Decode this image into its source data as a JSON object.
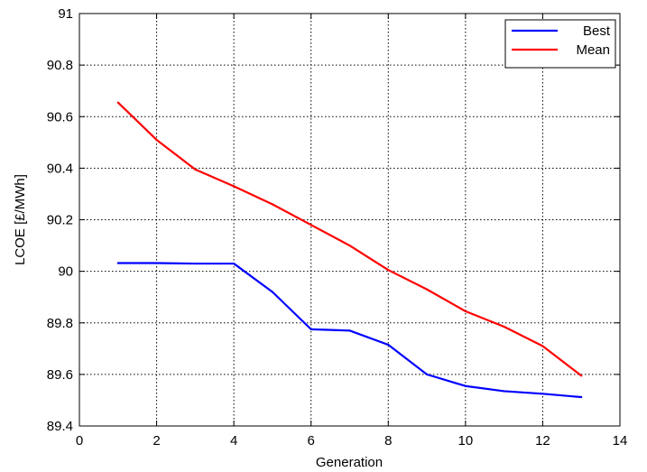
{
  "chart_data": {
    "type": "line",
    "xlabel": "Generation",
    "ylabel": "LCOE [£/MWh]",
    "xlim": [
      0,
      14
    ],
    "ylim": [
      89.4,
      91
    ],
    "xticks": [
      0,
      2,
      4,
      6,
      8,
      10,
      12,
      14
    ],
    "xtick_labels": [
      "0",
      "2",
      "4",
      "6",
      "8",
      "10",
      "12",
      "14"
    ],
    "yticks": [
      89.4,
      89.6,
      89.8,
      90,
      90.2,
      90.4,
      90.6,
      90.8,
      91
    ],
    "ytick_labels": [
      "89.4",
      "89.6",
      "89.8",
      "90",
      "90.2",
      "90.4",
      "90.6",
      "90.8",
      "91"
    ],
    "grid": true,
    "legend_position": "top-right",
    "x": [
      1,
      2,
      3,
      4,
      5,
      6,
      7,
      8,
      9,
      10,
      11,
      12,
      13
    ],
    "series": [
      {
        "name": "Best",
        "color": "#0000ff",
        "values": [
          90.032,
          90.032,
          90.03,
          90.03,
          89.92,
          89.775,
          89.77,
          89.715,
          89.6,
          89.555,
          89.535,
          89.525,
          89.512
        ]
      },
      {
        "name": "Mean",
        "color": "#ff0000",
        "values": [
          90.655,
          90.51,
          90.395,
          90.33,
          90.26,
          90.18,
          90.1,
          90.005,
          89.93,
          89.845,
          89.785,
          89.71,
          89.595
        ]
      }
    ]
  }
}
